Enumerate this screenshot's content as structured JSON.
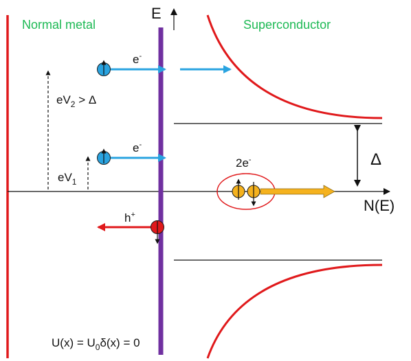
{
  "labels": {
    "normal_metal": "Normal metal",
    "superconductor": "Superconductor",
    "energy_axis": "E",
    "dos_axis": "N(E)",
    "gap": "Δ",
    "electron_symbol": "e",
    "minus_sup": "-",
    "hole_symbol": "h",
    "plus_sup": "+",
    "cooper_pair_prefix": "2e",
    "ev2_e": "eV",
    "ev2_sub": "2",
    "ev2_cond": " > Δ",
    "ev1_e": "eV",
    "ev1_sub": "1",
    "potential_a": "U(x) = U",
    "potential_sub": "0",
    "potential_b": "δ(x) = 0"
  },
  "colors": {
    "region_text": "#1db954",
    "electron": "#29a3e0",
    "hole": "#e0191b",
    "cooper_pair": "#f5b21e",
    "barrier": "#7030a0",
    "dos_curve": "#e0191b",
    "ellipse": "#e0191b"
  }
}
